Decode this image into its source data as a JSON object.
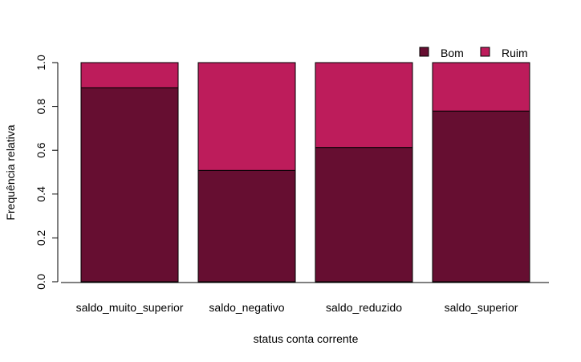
{
  "chart_data": {
    "type": "bar",
    "stacked": true,
    "categories": [
      "saldo_muito_superior",
      "saldo_negativo",
      "saldo_reduzido",
      "saldo_superior"
    ],
    "series": [
      {
        "name": "Bom",
        "values": [
          0.885,
          0.508,
          0.613,
          0.779
        ],
        "color": "#660E31"
      },
      {
        "name": "Ruim",
        "values": [
          0.115,
          0.492,
          0.387,
          0.221
        ],
        "color": "#BD1C5B"
      }
    ],
    "xlabel": "status conta corrente",
    "ylabel": "Frequência relativa",
    "ylim": [
      0,
      1
    ],
    "yticks": [
      "0.0",
      "0.2",
      "0.4",
      "0.6",
      "0.8",
      "1.0"
    ],
    "ytick_values": [
      0,
      0.2,
      0.4,
      0.6,
      0.8,
      1.0
    ],
    "legend_position": "top-right",
    "grid": false
  }
}
